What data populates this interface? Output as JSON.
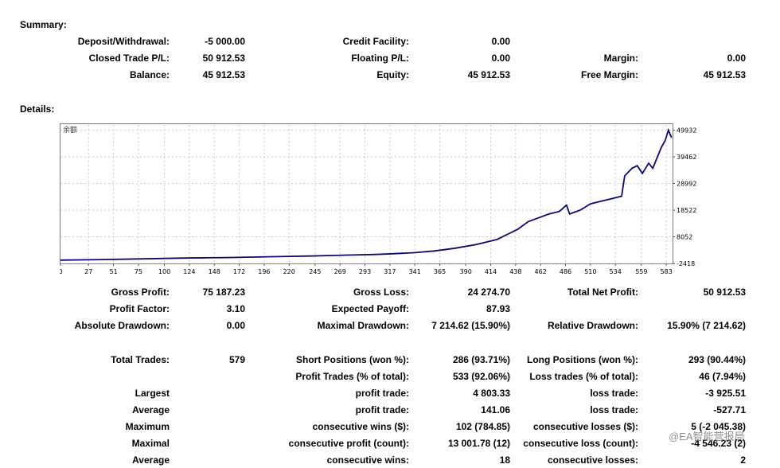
{
  "summary": {
    "title": "Summary:",
    "rows": [
      [
        {
          "label": "Deposit/Withdrawal:",
          "value": "-5 000.00"
        },
        {
          "label": "Credit Facility:",
          "value": "0.00"
        },
        {
          "label": "",
          "value": ""
        }
      ],
      [
        {
          "label": "Closed Trade P/L:",
          "value": "50 912.53"
        },
        {
          "label": "Floating P/L:",
          "value": "0.00"
        },
        {
          "label": "Margin:",
          "value": "0.00"
        }
      ],
      [
        {
          "label": "Balance:",
          "value": "45 912.53"
        },
        {
          "label": "Equity:",
          "value": "45 912.53"
        },
        {
          "label": "Free Margin:",
          "value": "45 912.53"
        }
      ]
    ]
  },
  "details": {
    "title": "Details:",
    "rows": [
      [
        {
          "label": "Gross Profit:",
          "value": "75 187.23"
        },
        {
          "label": "Gross Loss:",
          "value": "24 274.70"
        },
        {
          "label": "Total Net Profit:",
          "value": "50 912.53"
        }
      ],
      [
        {
          "label": "Profit Factor:",
          "value": "3.10"
        },
        {
          "label": "Expected Payoff:",
          "value": "87.93"
        },
        {
          "label": "",
          "value": ""
        }
      ],
      [
        {
          "label": "Absolute Drawdown:",
          "value": "0.00"
        },
        {
          "label": "Maximal Drawdown:",
          "value": "7 214.62 (15.90%)"
        },
        {
          "label": "Relative Drawdown:",
          "value": "15.90% (7 214.62)"
        }
      ],
      [
        {
          "label": "Total Trades:",
          "value": "579"
        },
        {
          "label": "Short Positions (won %):",
          "value": "286 (93.71%)"
        },
        {
          "label": "Long Positions (won %):",
          "value": "293 (90.44%)"
        }
      ],
      [
        {
          "label": "",
          "value": ""
        },
        {
          "label": "Profit Trades (% of total):",
          "value": "533 (92.06%)"
        },
        {
          "label": "Loss trades (% of total):",
          "value": "46 (7.94%)"
        }
      ],
      [
        {
          "label": "Largest",
          "value": ""
        },
        {
          "label": "profit trade:",
          "value": "4 803.33"
        },
        {
          "label": "loss trade:",
          "value": "-3 925.51"
        }
      ],
      [
        {
          "label": "Average",
          "value": ""
        },
        {
          "label": "profit trade:",
          "value": "141.06"
        },
        {
          "label": "loss trade:",
          "value": "-527.71"
        }
      ],
      [
        {
          "label": "Maximum",
          "value": ""
        },
        {
          "label": "consecutive wins ($):",
          "value": "102 (784.85)"
        },
        {
          "label": "consecutive losses ($):",
          "value": "5 (-2 045.38)"
        }
      ],
      [
        {
          "label": "Maximal",
          "value": ""
        },
        {
          "label": "consecutive profit (count):",
          "value": "13 001.78 (12)"
        },
        {
          "label": "consecutive loss (count):",
          "value": "-4 546.23 (2)"
        }
      ],
      [
        {
          "label": "Average",
          "value": ""
        },
        {
          "label": "consecutive wins:",
          "value": "18"
        },
        {
          "label": "consecutive losses:",
          "value": "2"
        }
      ]
    ]
  },
  "watermark": {
    "text": "@EA智能营报局"
  },
  "chart_data": {
    "type": "line",
    "series": [
      {
        "name": "余额",
        "color": "#0a0a6e",
        "x": [
          0,
          20,
          40,
          60,
          80,
          100,
          120,
          140,
          160,
          180,
          200,
          220,
          240,
          260,
          280,
          300,
          320,
          340,
          360,
          380,
          400,
          420,
          430,
          440,
          450,
          460,
          470,
          480,
          487,
          490,
          500,
          510,
          520,
          530,
          540,
          543,
          550,
          555,
          560,
          566,
          570,
          575,
          578,
          582,
          585,
          588
        ],
        "y": [
          -1100,
          -1000,
          -900,
          -750,
          -600,
          -450,
          -300,
          -200,
          -100,
          50,
          200,
          350,
          500,
          700,
          900,
          1100,
          1400,
          1800,
          2500,
          3600,
          5000,
          7000,
          9000,
          11000,
          14000,
          15500,
          17000,
          18000,
          20500,
          17000,
          18500,
          21000,
          22000,
          23000,
          24000,
          32000,
          35000,
          36000,
          33000,
          37000,
          35000,
          40000,
          43000,
          46000,
          50000,
          47000
        ]
      }
    ],
    "x_ticks": [
      0,
      27,
      51,
      75,
      100,
      124,
      148,
      172,
      196,
      220,
      245,
      269,
      293,
      317,
      341,
      365,
      390,
      414,
      438,
      462,
      486,
      510,
      534,
      559,
      583
    ],
    "y_ticks": [
      -2418,
      8052,
      18522,
      28992,
      39462,
      49932
    ],
    "xlim": [
      0,
      589
    ],
    "ylim": [
      -2418,
      52000
    ],
    "grid": true
  }
}
